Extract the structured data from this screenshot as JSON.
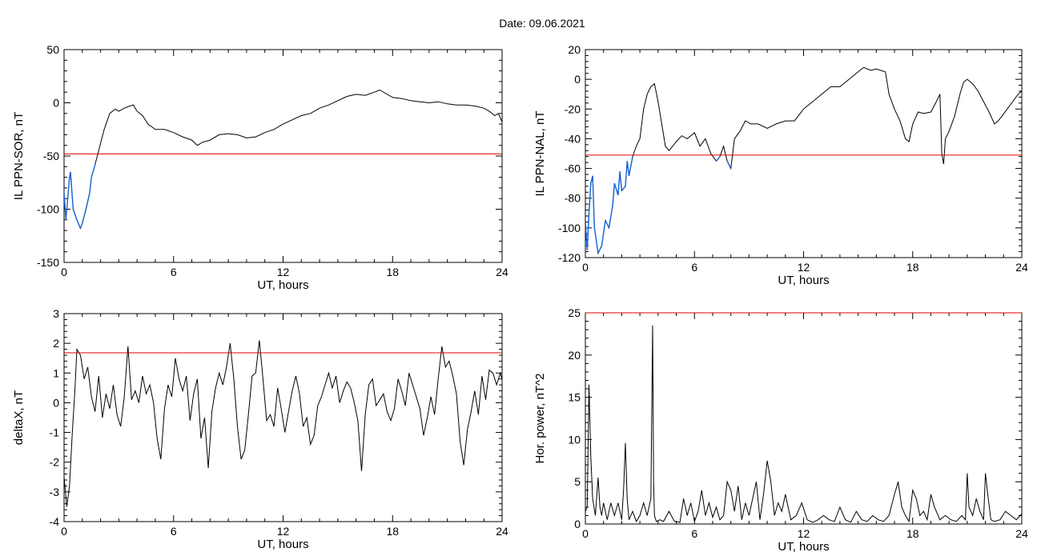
{
  "figure": {
    "title": "Date:  09.06.2021"
  },
  "chart_data": [
    {
      "type": "line",
      "xlabel": "UT, hours",
      "ylabel": "IL PPN-SOR, nT",
      "xlim": [
        0,
        24
      ],
      "ylim": [
        -150,
        50
      ],
      "xticks": [
        "0",
        "6",
        "12",
        "18",
        "24"
      ],
      "yticks": [
        "-150",
        "-100",
        "-50",
        "0",
        "50"
      ],
      "threshold": -48,
      "colors": {
        "line": "#000000",
        "below": "#1565d8",
        "threshold": "#e00000"
      },
      "series": [
        {
          "x": [
            0,
            0.1,
            0.2,
            0.3,
            0.35,
            0.5,
            0.7,
            0.9,
            1.0,
            1.2,
            1.4,
            1.5,
            1.7,
            1.9,
            2.0,
            2.2,
            2.5,
            2.8,
            3.0,
            3.3,
            3.6,
            3.8,
            4.0,
            4.3,
            4.6,
            5.0,
            5.5,
            6.0,
            6.5,
            7.0,
            7.3,
            7.6,
            8.0,
            8.5,
            9.0,
            9.5,
            10.0,
            10.5,
            11.0,
            11.5,
            12.0,
            12.5,
            13.0,
            13.5,
            14.0,
            14.5,
            15.0,
            15.5,
            16.0,
            16.5,
            17.0,
            17.3,
            17.6,
            18.0,
            18.5,
            19.0,
            19.5,
            20.0,
            20.5,
            21.0,
            21.5,
            22.0,
            22.5,
            23.0,
            23.3,
            23.6,
            23.8,
            24.0
          ],
          "y": [
            -85,
            -110,
            -90,
            -70,
            -65,
            -100,
            -110,
            -118,
            -113,
            -100,
            -85,
            -70,
            -58,
            -45,
            -38,
            -25,
            -10,
            -6,
            -8,
            -5,
            -3,
            -2,
            -8,
            -12,
            -20,
            -25,
            -25,
            -28,
            -32,
            -35,
            -40,
            -37,
            -35,
            -30,
            -29,
            -30,
            -33,
            -32,
            -28,
            -25,
            -20,
            -16,
            -12,
            -10,
            -5,
            -2,
            2,
            6,
            8,
            7,
            10,
            12,
            9,
            5,
            4,
            2,
            1,
            0,
            1,
            -1,
            -2,
            -2,
            -3,
            -5,
            -8,
            -12,
            -10,
            -18
          ]
        }
      ]
    },
    {
      "type": "line",
      "xlabel": "UT, hours",
      "ylabel": "IL PPN-NAL, nT",
      "xlim": [
        0,
        24
      ],
      "ylim": [
        -120,
        20
      ],
      "xticks": [
        "0",
        "6",
        "12",
        "18",
        "24"
      ],
      "yticks": [
        "-120",
        "-100",
        "-80",
        "-60",
        "-40",
        "-20",
        "0",
        "20"
      ],
      "threshold": -51,
      "colors": {
        "line": "#000000",
        "below": "#1565d8",
        "threshold": "#e00000"
      },
      "series": [
        {
          "x": [
            0,
            0.1,
            0.2,
            0.3,
            0.4,
            0.5,
            0.7,
            0.9,
            1.1,
            1.3,
            1.5,
            1.6,
            1.8,
            1.9,
            2.0,
            2.2,
            2.3,
            2.4,
            2.6,
            2.8,
            3.0,
            3.2,
            3.4,
            3.6,
            3.8,
            4.0,
            4.2,
            4.4,
            4.6,
            4.8,
            5.0,
            5.3,
            5.6,
            6.0,
            6.3,
            6.6,
            6.9,
            7.2,
            7.4,
            7.6,
            7.8,
            8.0,
            8.2,
            8.5,
            8.8,
            9.1,
            9.5,
            10.0,
            10.5,
            11.0,
            11.5,
            12.0,
            12.5,
            13.0,
            13.5,
            14.0,
            14.5,
            15.0,
            15.3,
            15.7,
            16.0,
            16.5,
            16.7,
            17.0,
            17.3,
            17.6,
            17.8,
            18.0,
            18.3,
            18.6,
            19.0,
            19.3,
            19.5,
            19.6,
            19.7,
            19.8,
            20.0,
            20.3,
            20.6,
            20.8,
            21.0,
            21.3,
            21.6,
            21.9,
            22.2,
            22.5,
            22.7,
            22.9,
            23.2,
            23.5,
            23.8,
            24.0
          ],
          "y": [
            -95,
            -115,
            -90,
            -70,
            -65,
            -100,
            -117,
            -112,
            -95,
            -100,
            -85,
            -70,
            -78,
            -62,
            -75,
            -72,
            -55,
            -65,
            -52,
            -45,
            -40,
            -20,
            -10,
            -5,
            -3,
            -15,
            -30,
            -45,
            -48,
            -45,
            -42,
            -38,
            -40,
            -36,
            -45,
            -40,
            -50,
            -55,
            -52,
            -45,
            -55,
            -60,
            -40,
            -35,
            -28,
            -30,
            -30,
            -33,
            -30,
            -28,
            -28,
            -20,
            -15,
            -10,
            -5,
            -5,
            0,
            5,
            8,
            6,
            7,
            5,
            -10,
            -20,
            -28,
            -40,
            -42,
            -30,
            -22,
            -23,
            -22,
            -15,
            -10,
            -50,
            -57,
            -40,
            -35,
            -25,
            -10,
            -2,
            0,
            -3,
            -8,
            -15,
            -22,
            -30,
            -28,
            -25,
            -20,
            -15,
            -10,
            -8
          ]
        }
      ]
    },
    {
      "type": "line",
      "xlabel": "UT, hours",
      "ylabel": "deltaX, nT",
      "xlim": [
        0,
        24
      ],
      "ylim": [
        -4,
        3
      ],
      "xticks": [
        "0",
        "6",
        "12",
        "18",
        "24"
      ],
      "yticks": [
        "-4",
        "-3",
        "-2",
        "-1",
        "0",
        "1",
        "2",
        "3"
      ],
      "threshold": 1.68,
      "colors": {
        "line": "#000000",
        "threshold": "#e00000"
      },
      "series": [
        {
          "x": [
            0,
            0.15,
            0.3,
            0.45,
            0.6,
            0.7,
            0.9,
            1.1,
            1.3,
            1.5,
            1.7,
            1.9,
            2.1,
            2.3,
            2.5,
            2.7,
            2.9,
            3.1,
            3.3,
            3.5,
            3.7,
            3.9,
            4.1,
            4.3,
            4.5,
            4.7,
            4.9,
            5.1,
            5.3,
            5.5,
            5.7,
            5.9,
            6.1,
            6.3,
            6.5,
            6.7,
            6.9,
            7.1,
            7.3,
            7.5,
            7.7,
            7.9,
            8.1,
            8.3,
            8.5,
            8.7,
            8.9,
            9.1,
            9.3,
            9.5,
            9.7,
            9.9,
            10.1,
            10.3,
            10.5,
            10.7,
            10.9,
            11.1,
            11.3,
            11.5,
            11.7,
            11.9,
            12.1,
            12.3,
            12.5,
            12.7,
            12.9,
            13.1,
            13.3,
            13.5,
            13.7,
            13.9,
            14.1,
            14.3,
            14.5,
            14.7,
            14.9,
            15.1,
            15.3,
            15.5,
            15.7,
            15.9,
            16.1,
            16.3,
            16.5,
            16.7,
            16.9,
            17.1,
            17.3,
            17.5,
            17.7,
            17.9,
            18.1,
            18.3,
            18.5,
            18.7,
            18.9,
            19.1,
            19.3,
            19.5,
            19.7,
            19.9,
            20.1,
            20.3,
            20.5,
            20.7,
            20.9,
            21.1,
            21.3,
            21.5,
            21.7,
            21.9,
            22.1,
            22.3,
            22.5,
            22.7,
            22.9,
            23.1,
            23.3,
            23.5,
            23.7,
            23.9,
            24.0
          ],
          "y": [
            -2.5,
            -3.5,
            -2.8,
            -1.0,
            0.5,
            1.8,
            1.6,
            0.8,
            1.2,
            0.2,
            -0.3,
            0.9,
            -0.5,
            0.3,
            -0.2,
            0.6,
            -0.4,
            -0.8,
            0.2,
            1.9,
            0.1,
            0.4,
            0.0,
            0.9,
            0.3,
            0.6,
            0.0,
            -1.2,
            -1.9,
            -0.2,
            0.6,
            0.2,
            1.5,
            0.8,
            0.4,
            0.9,
            -0.6,
            0.3,
            0.8,
            -1.2,
            -0.5,
            -2.2,
            -0.3,
            0.5,
            1.0,
            0.6,
            1.2,
            2.0,
            0.8,
            -0.8,
            -1.9,
            -1.6,
            -0.4,
            0.9,
            1.0,
            2.1,
            0.8,
            -0.6,
            -0.4,
            -0.8,
            0.5,
            -0.2,
            -1.0,
            -0.3,
            0.4,
            0.9,
            0.3,
            -0.8,
            -0.5,
            -1.4,
            -1.1,
            -0.1,
            0.2,
            0.6,
            1.0,
            0.5,
            0.9,
            0.0,
            0.4,
            0.7,
            0.5,
            0.0,
            -0.6,
            -2.3,
            -0.4,
            0.6,
            0.8,
            -0.1,
            0.1,
            0.3,
            -0.3,
            -0.6,
            -0.2,
            0.8,
            0.4,
            -0.1,
            1.0,
            0.6,
            0.2,
            -0.2,
            -1.1,
            -0.5,
            0.2,
            -0.4,
            0.8,
            1.9,
            1.2,
            1.4,
            0.9,
            0.3,
            -1.3,
            -2.1,
            -0.9,
            -0.3,
            0.4,
            -0.4,
            0.9,
            0.1,
            1.1,
            1.0,
            0.6,
            1.0,
            0.8
          ]
        }
      ]
    },
    {
      "type": "line",
      "xlabel": "UT, hours",
      "ylabel": "Hor. power, nT^2",
      "xlim": [
        0,
        24
      ],
      "ylim": [
        0,
        25
      ],
      "xticks": [
        "0",
        "6",
        "12",
        "18",
        "24"
      ],
      "yticks": [
        "0",
        "5",
        "10",
        "15",
        "20",
        "25"
      ],
      "threshold": 25,
      "colors": {
        "line": "#000000",
        "threshold": "#e00000"
      },
      "series": [
        {
          "x": [
            0,
            0.1,
            0.2,
            0.3,
            0.4,
            0.55,
            0.7,
            0.8,
            0.9,
            1.0,
            1.2,
            1.4,
            1.6,
            1.8,
            2.0,
            2.1,
            2.2,
            2.3,
            2.4,
            2.6,
            2.8,
            3.0,
            3.2,
            3.4,
            3.6,
            3.7,
            3.75,
            3.8,
            3.9,
            4.1,
            4.3,
            4.6,
            4.9,
            5.2,
            5.4,
            5.6,
            5.8,
            6.0,
            6.2,
            6.4,
            6.6,
            6.8,
            7.0,
            7.2,
            7.4,
            7.6,
            7.8,
            8.0,
            8.2,
            8.4,
            8.6,
            8.8,
            9.0,
            9.2,
            9.4,
            9.6,
            9.8,
            10.0,
            10.2,
            10.4,
            10.6,
            10.8,
            11.0,
            11.3,
            11.6,
            11.9,
            12.2,
            12.5,
            12.8,
            13.1,
            13.4,
            13.7,
            14.0,
            14.3,
            14.6,
            14.9,
            15.2,
            15.5,
            15.8,
            16.1,
            16.4,
            16.7,
            17.0,
            17.2,
            17.4,
            17.6,
            17.8,
            18.0,
            18.2,
            18.4,
            18.6,
            18.8,
            19.0,
            19.2,
            19.5,
            19.8,
            20.1,
            20.4,
            20.7,
            20.9,
            21.0,
            21.1,
            21.3,
            21.5,
            21.7,
            21.9,
            22.0,
            22.1,
            22.3,
            22.5,
            22.8,
            23.1,
            23.4,
            23.7,
            24.0
          ],
          "y": [
            1.5,
            2.0,
            16.5,
            8.0,
            3.0,
            1.0,
            5.5,
            2.0,
            1.0,
            2.5,
            0.5,
            2.5,
            1.0,
            2.5,
            0.5,
            4.0,
            9.6,
            3.0,
            0.5,
            1.5,
            0.3,
            1.0,
            2.5,
            1.0,
            3.0,
            23.5,
            5.0,
            1.0,
            0.3,
            0.5,
            0.3,
            1.5,
            0.3,
            0.2,
            3.0,
            1.0,
            2.5,
            0.3,
            1.5,
            4.0,
            1.0,
            2.5,
            0.8,
            2.0,
            0.5,
            1.0,
            5.0,
            4.0,
            1.5,
            4.5,
            0.5,
            2.5,
            1.0,
            3.0,
            5.0,
            0.5,
            3.5,
            7.5,
            5.0,
            1.0,
            2.5,
            1.5,
            3.5,
            0.5,
            1.0,
            2.5,
            0.5,
            0.2,
            0.5,
            1.0,
            0.5,
            0.3,
            2.0,
            0.5,
            0.2,
            1.5,
            0.5,
            0.3,
            1.0,
            0.5,
            0.3,
            1.0,
            3.5,
            5.0,
            2.0,
            1.0,
            0.3,
            4.0,
            3.0,
            1.0,
            1.5,
            0.5,
            3.5,
            2.0,
            0.5,
            1.0,
            0.5,
            0.3,
            1.0,
            0.5,
            6.0,
            2.0,
            1.0,
            3.0,
            1.5,
            0.5,
            6.0,
            4.0,
            0.5,
            0.3,
            0.5,
            1.5,
            1.0,
            0.5,
            1.2
          ]
        }
      ]
    }
  ]
}
